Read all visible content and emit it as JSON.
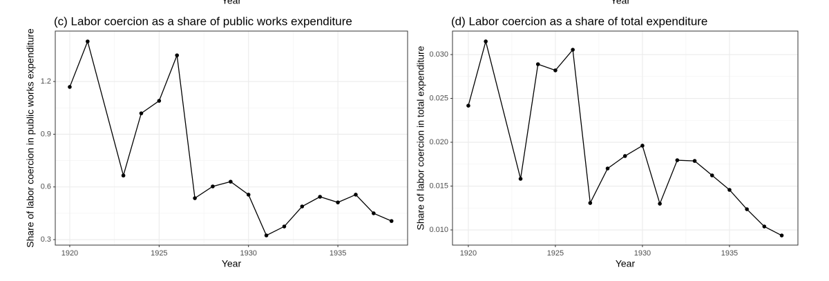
{
  "above": {
    "x_labels": [
      "Year",
      "Year"
    ]
  },
  "chart_data": [
    {
      "type": "line",
      "title": "(c) Labor coercion as a share of public works expenditure",
      "x_label": "Year",
      "y_label": "Share of labor coercion in public works expenditure",
      "x": [
        1920,
        1921,
        1923,
        1924,
        1925,
        1926,
        1927,
        1928,
        1929,
        1930,
        1931,
        1932,
        1933,
        1934,
        1935,
        1936,
        1937,
        1938
      ],
      "series": [
        {
          "name": "Share",
          "color": "#000000",
          "values": [
            1.169,
            1.428,
            0.665,
            1.019,
            1.09,
            1.349,
            0.536,
            0.603,
            0.63,
            0.556,
            0.324,
            0.375,
            0.489,
            0.544,
            0.512,
            0.556,
            0.45,
            0.406
          ]
        }
      ],
      "xlim": [
        1919.19,
        1938.9
      ],
      "ylim": [
        0.269,
        1.487
      ],
      "xticks": [
        1920,
        1925,
        1930,
        1935
      ],
      "yticks": [
        0.3,
        0.6,
        0.9,
        1.2
      ],
      "grid": true
    },
    {
      "type": "line",
      "title": "(d) Labor coercion as a share of total expenditure",
      "x_label": "Year",
      "y_label": "Share of labor coercion in total expenditure",
      "x": [
        1920,
        1921,
        1923,
        1924,
        1925,
        1926,
        1927,
        1928,
        1929,
        1930,
        1931,
        1932,
        1933,
        1934,
        1935,
        1936,
        1937,
        1938
      ],
      "series": [
        {
          "name": "Share",
          "color": "#000000",
          "values": [
            0.02417,
            0.0315,
            0.01583,
            0.0289,
            0.0282,
            0.03055,
            0.01307,
            0.01701,
            0.01843,
            0.01961,
            0.01299,
            0.01795,
            0.01787,
            0.01622,
            0.01457,
            0.01236,
            0.01039,
            0.00937
          ]
        }
      ],
      "xlim": [
        1919.09,
        1938.93
      ],
      "ylim": [
        0.00827,
        0.03268
      ],
      "xticks": [
        1920,
        1925,
        1930,
        1935
      ],
      "yticks": [
        {
          "value": 0.01,
          "label": "0.010"
        },
        {
          "value": 0.015,
          "label": "0.015"
        },
        {
          "value": 0.02,
          "label": "0.020"
        },
        {
          "value": 0.025,
          "label": "0.025"
        },
        {
          "value": 0.03,
          "label": "0.030"
        }
      ],
      "grid": true
    }
  ]
}
